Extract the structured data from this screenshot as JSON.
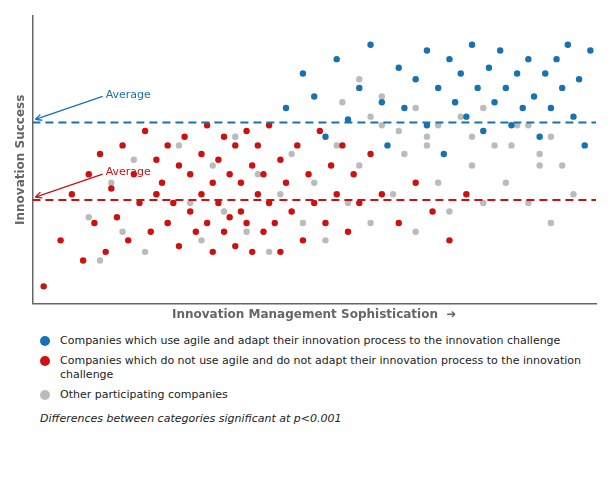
{
  "chart_data": {
    "type": "scatter",
    "xlabel": "Innovation Management Sophistication  ➜",
    "ylabel": "Innovation Success",
    "footnote": "Differences between categories significant at p<0.001",
    "xlim": [
      0,
      1.0
    ],
    "ylim": [
      0,
      1.0
    ],
    "xticks": [],
    "yticks": [],
    "tick_labels": false,
    "grid": false,
    "legend": "bottom",
    "annotations": [
      {
        "text": "Average",
        "y": 0.63,
        "color": "#1872B0",
        "line_style": "dashed"
      },
      {
        "text": "Average",
        "y": 0.36,
        "color": "#CC1111",
        "line_style": "dashed"
      }
    ],
    "series": [
      {
        "name": "Companies which use agile and adapt their innovation process to the innovation challenge",
        "color": "#1872B0",
        "values": [
          [
            0.45,
            0.68
          ],
          [
            0.48,
            0.8
          ],
          [
            0.5,
            0.72
          ],
          [
            0.52,
            0.58
          ],
          [
            0.54,
            0.85
          ],
          [
            0.56,
            0.64
          ],
          [
            0.58,
            0.75
          ],
          [
            0.6,
            0.9
          ],
          [
            0.62,
            0.7
          ],
          [
            0.63,
            0.55
          ],
          [
            0.65,
            0.82
          ],
          [
            0.66,
            0.68
          ],
          [
            0.68,
            0.78
          ],
          [
            0.7,
            0.88
          ],
          [
            0.7,
            0.62
          ],
          [
            0.72,
            0.75
          ],
          [
            0.73,
            0.52
          ],
          [
            0.74,
            0.85
          ],
          [
            0.75,
            0.7
          ],
          [
            0.76,
            0.8
          ],
          [
            0.77,
            0.65
          ],
          [
            0.78,
            0.9
          ],
          [
            0.79,
            0.75
          ],
          [
            0.8,
            0.6
          ],
          [
            0.81,
            0.82
          ],
          [
            0.82,
            0.7
          ],
          [
            0.83,
            0.88
          ],
          [
            0.84,
            0.75
          ],
          [
            0.85,
            0.62
          ],
          [
            0.86,
            0.8
          ],
          [
            0.87,
            0.68
          ],
          [
            0.88,
            0.85
          ],
          [
            0.89,
            0.72
          ],
          [
            0.9,
            0.58
          ],
          [
            0.91,
            0.8
          ],
          [
            0.92,
            0.68
          ],
          [
            0.93,
            0.85
          ],
          [
            0.94,
            0.75
          ],
          [
            0.95,
            0.9
          ],
          [
            0.96,
            0.65
          ],
          [
            0.97,
            0.78
          ],
          [
            0.98,
            0.55
          ],
          [
            0.99,
            0.88
          ]
        ]
      },
      {
        "name": "Companies which do not use agile and do not adapt their innovation process to the innovation challenge",
        "color": "#CC1111",
        "values": [
          [
            0.02,
            0.06
          ],
          [
            0.05,
            0.22
          ],
          [
            0.07,
            0.38
          ],
          [
            0.09,
            0.15
          ],
          [
            0.1,
            0.45
          ],
          [
            0.11,
            0.28
          ],
          [
            0.12,
            0.52
          ],
          [
            0.13,
            0.18
          ],
          [
            0.14,
            0.4
          ],
          [
            0.15,
            0.3
          ],
          [
            0.16,
            0.55
          ],
          [
            0.17,
            0.22
          ],
          [
            0.18,
            0.45
          ],
          [
            0.19,
            0.35
          ],
          [
            0.2,
            0.6
          ],
          [
            0.21,
            0.25
          ],
          [
            0.22,
            0.5
          ],
          [
            0.22,
            0.38
          ],
          [
            0.23,
            0.42
          ],
          [
            0.24,
            0.28
          ],
          [
            0.24,
            0.55
          ],
          [
            0.25,
            0.35
          ],
          [
            0.26,
            0.48
          ],
          [
            0.26,
            0.2
          ],
          [
            0.27,
            0.58
          ],
          [
            0.28,
            0.32
          ],
          [
            0.28,
            0.45
          ],
          [
            0.29,
            0.25
          ],
          [
            0.3,
            0.52
          ],
          [
            0.3,
            0.38
          ],
          [
            0.31,
            0.28
          ],
          [
            0.31,
            0.62
          ],
          [
            0.32,
            0.42
          ],
          [
            0.32,
            0.18
          ],
          [
            0.33,
            0.5
          ],
          [
            0.33,
            0.35
          ],
          [
            0.34,
            0.25
          ],
          [
            0.34,
            0.58
          ],
          [
            0.35,
            0.45
          ],
          [
            0.35,
            0.3
          ],
          [
            0.36,
            0.55
          ],
          [
            0.36,
            0.2
          ],
          [
            0.37,
            0.42
          ],
          [
            0.37,
            0.32
          ],
          [
            0.38,
            0.6
          ],
          [
            0.38,
            0.28
          ],
          [
            0.39,
            0.48
          ],
          [
            0.39,
            0.18
          ],
          [
            0.4,
            0.38
          ],
          [
            0.4,
            0.55
          ],
          [
            0.41,
            0.25
          ],
          [
            0.41,
            0.45
          ],
          [
            0.42,
            0.35
          ],
          [
            0.42,
            0.62
          ],
          [
            0.43,
            0.28
          ],
          [
            0.44,
            0.5
          ],
          [
            0.44,
            0.18
          ],
          [
            0.45,
            0.42
          ],
          [
            0.46,
            0.32
          ],
          [
            0.47,
            0.55
          ],
          [
            0.48,
            0.22
          ],
          [
            0.49,
            0.45
          ],
          [
            0.5,
            0.35
          ],
          [
            0.51,
            0.6
          ],
          [
            0.52,
            0.28
          ],
          [
            0.53,
            0.48
          ],
          [
            0.54,
            0.38
          ],
          [
            0.55,
            0.55
          ],
          [
            0.56,
            0.25
          ],
          [
            0.57,
            0.45
          ],
          [
            0.58,
            0.35
          ],
          [
            0.6,
            0.52
          ],
          [
            0.62,
            0.38
          ],
          [
            0.65,
            0.28
          ],
          [
            0.68,
            0.42
          ],
          [
            0.71,
            0.32
          ],
          [
            0.74,
            0.22
          ],
          [
            0.77,
            0.38
          ]
        ]
      },
      {
        "name": "Other participating companies",
        "color": "#BBBBBB",
        "values": [
          [
            0.1,
            0.3
          ],
          [
            0.12,
            0.15
          ],
          [
            0.14,
            0.42
          ],
          [
            0.16,
            0.25
          ],
          [
            0.18,
            0.5
          ],
          [
            0.2,
            0.18
          ],
          [
            0.22,
            0.38
          ],
          [
            0.24,
            0.28
          ],
          [
            0.26,
            0.55
          ],
          [
            0.28,
            0.35
          ],
          [
            0.3,
            0.22
          ],
          [
            0.32,
            0.48
          ],
          [
            0.34,
            0.32
          ],
          [
            0.36,
            0.58
          ],
          [
            0.38,
            0.25
          ],
          [
            0.4,
            0.45
          ],
          [
            0.42,
            0.18
          ],
          [
            0.44,
            0.38
          ],
          [
            0.46,
            0.52
          ],
          [
            0.48,
            0.28
          ],
          [
            0.5,
            0.42
          ],
          [
            0.52,
            0.22
          ],
          [
            0.54,
            0.55
          ],
          [
            0.56,
            0.35
          ],
          [
            0.58,
            0.48
          ],
          [
            0.6,
            0.28
          ],
          [
            0.62,
            0.62
          ],
          [
            0.64,
            0.38
          ],
          [
            0.66,
            0.52
          ],
          [
            0.68,
            0.25
          ],
          [
            0.7,
            0.58
          ],
          [
            0.72,
            0.42
          ],
          [
            0.74,
            0.32
          ],
          [
            0.76,
            0.65
          ],
          [
            0.78,
            0.48
          ],
          [
            0.8,
            0.35
          ],
          [
            0.82,
            0.55
          ],
          [
            0.84,
            0.42
          ],
          [
            0.86,
            0.62
          ],
          [
            0.88,
            0.35
          ],
          [
            0.9,
            0.52
          ],
          [
            0.92,
            0.28
          ],
          [
            0.94,
            0.48
          ],
          [
            0.96,
            0.38
          ],
          [
            0.55,
            0.7
          ],
          [
            0.58,
            0.78
          ],
          [
            0.6,
            0.65
          ],
          [
            0.62,
            0.72
          ],
          [
            0.65,
            0.6
          ],
          [
            0.68,
            0.68
          ],
          [
            0.7,
            0.55
          ],
          [
            0.72,
            0.62
          ],
          [
            0.75,
            0.7
          ],
          [
            0.78,
            0.58
          ],
          [
            0.8,
            0.68
          ],
          [
            0.85,
            0.55
          ],
          [
            0.88,
            0.62
          ],
          [
            0.9,
            0.48
          ],
          [
            0.92,
            0.58
          ]
        ]
      }
    ]
  }
}
